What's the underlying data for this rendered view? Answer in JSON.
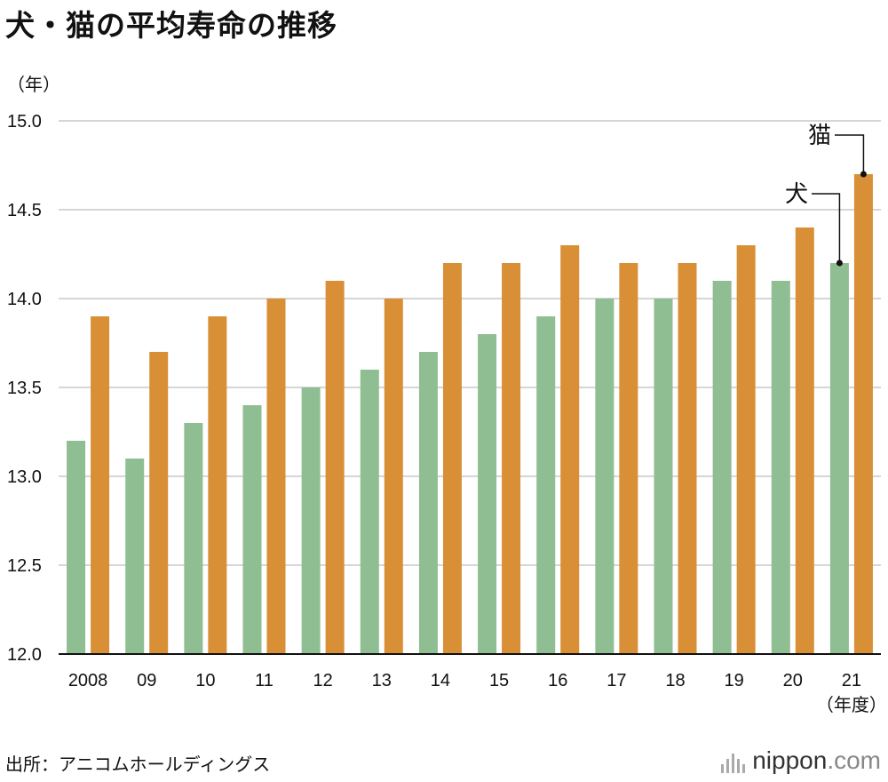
{
  "title": "犬・猫の平均寿命の推移",
  "source": "出所：アニコムホールディングス",
  "logo": {
    "name": "nippon",
    "tld": ".com"
  },
  "chart_data": {
    "type": "bar",
    "title": "犬・猫の平均寿命の推移",
    "ylabel": "（年）",
    "xlabel": "（年度）",
    "ylim": [
      12.0,
      15.0
    ],
    "yticks": [
      "12.0",
      "12.5",
      "13.0",
      "13.5",
      "14.0",
      "14.5",
      "15.0"
    ],
    "grid": true,
    "categories": [
      "2008",
      "09",
      "10",
      "11",
      "12",
      "13",
      "14",
      "15",
      "16",
      "17",
      "18",
      "19",
      "20",
      "21"
    ],
    "series": [
      {
        "name": "犬",
        "color": "#8fbe93",
        "values": [
          13.2,
          13.1,
          13.3,
          13.4,
          13.5,
          13.6,
          13.7,
          13.8,
          13.9,
          14.0,
          14.0,
          14.1,
          14.1,
          14.2
        ]
      },
      {
        "name": "猫",
        "color": "#d98f36",
        "values": [
          13.9,
          13.7,
          13.9,
          14.0,
          14.1,
          14.0,
          14.2,
          14.2,
          14.3,
          14.2,
          14.2,
          14.3,
          14.4,
          14.7
        ]
      }
    ]
  }
}
